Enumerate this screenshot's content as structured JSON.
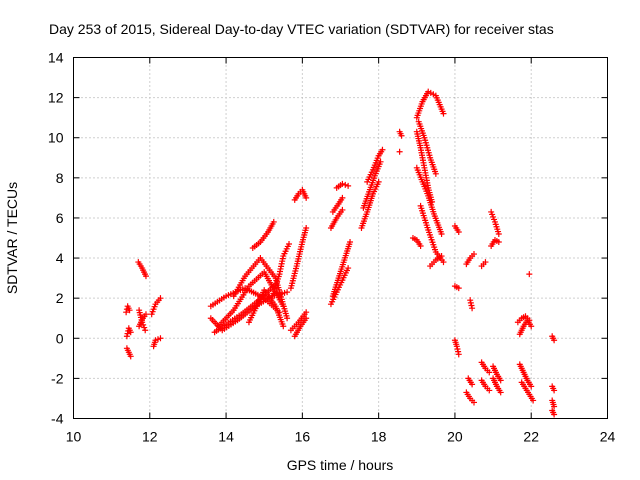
{
  "chart_data": {
    "type": "scatter",
    "title": "Day 253 of 2015, Sidereal Day-to-day VTEC variation (SDTVAR) for receiver stas",
    "xlabel": "GPS time / hours",
    "ylabel": "SDTVAR / TECUs",
    "xlim": [
      10,
      24
    ],
    "ylim": [
      -4,
      14
    ],
    "xticks": [
      10,
      12,
      14,
      16,
      18,
      20,
      22,
      24
    ],
    "yticks": [
      -4,
      -2,
      0,
      2,
      4,
      6,
      8,
      10,
      12,
      14
    ],
    "grid": true,
    "marker": "+",
    "marker_color": "#ff0000",
    "segments": [
      {
        "x": [
          11.38,
          11.42,
          11.47
        ],
        "y": [
          1.3,
          1.6,
          1.4
        ]
      },
      {
        "x": [
          11.4,
          11.45,
          11.5
        ],
        "y": [
          0.1,
          0.5,
          0.3
        ]
      },
      {
        "x": [
          11.4,
          11.45,
          11.5
        ],
        "y": [
          -0.5,
          -0.7,
          -0.9
        ]
      },
      {
        "x": [
          11.7,
          11.8,
          11.9
        ],
        "y": [
          3.8,
          3.5,
          3.1
        ]
      },
      {
        "x": [
          11.72,
          11.8,
          11.88
        ],
        "y": [
          1.4,
          0.8,
          0.4
        ]
      },
      {
        "x": [
          11.72,
          11.82,
          11.9
        ],
        "y": [
          0.6,
          1.0,
          1.2
        ]
      },
      {
        "x": [
          12.05,
          12.15,
          12.28
        ],
        "y": [
          1.2,
          1.7,
          2.0
        ]
      },
      {
        "x": [
          12.1,
          12.15,
          12.28
        ],
        "y": [
          -0.4,
          -0.1,
          0.0
        ]
      },
      {
        "x": [
          13.6,
          13.9,
          14.3,
          14.7,
          15.2,
          15.6
        ],
        "y": [
          1.0,
          0.4,
          0.9,
          1.5,
          2.1,
          2.3
        ]
      },
      {
        "x": [
          13.7,
          14.0,
          14.4,
          14.8,
          15.3
        ],
        "y": [
          0.3,
          0.7,
          1.2,
          1.8,
          2.7
        ]
      },
      {
        "x": [
          13.6,
          14.0,
          14.5,
          15.0,
          15.4
        ],
        "y": [
          1.6,
          2.1,
          2.5,
          2.0,
          1.3
        ]
      },
      {
        "x": [
          13.8,
          14.2,
          14.6,
          15.0,
          15.5
        ],
        "y": [
          0.6,
          1.4,
          2.6,
          3.3,
          1.6
        ]
      },
      {
        "x": [
          14.2,
          14.5,
          14.9,
          15.3,
          15.6
        ],
        "y": [
          2.1,
          3.1,
          4.0,
          3.0,
          1.0
        ]
      },
      {
        "x": [
          14.6,
          14.8,
          15.0,
          15.3,
          15.5
        ],
        "y": [
          0.8,
          1.6,
          2.4,
          1.6,
          0.6
        ]
      },
      {
        "x": [
          14.7,
          14.9,
          15.1,
          15.25
        ],
        "y": [
          4.5,
          4.8,
          5.3,
          5.8
        ]
      },
      {
        "x": [
          15.2,
          15.4,
          15.5,
          15.65
        ],
        "y": [
          2.0,
          3.2,
          4.1,
          4.7
        ]
      },
      {
        "x": [
          15.7,
          15.85,
          16.0,
          16.1
        ],
        "y": [
          2.5,
          3.6,
          4.8,
          5.5
        ]
      },
      {
        "x": [
          15.8,
          15.9,
          16.0,
          16.1
        ],
        "y": [
          6.9,
          7.2,
          7.4,
          7.0
        ]
      },
      {
        "x": [
          15.7,
          15.9,
          16.1
        ],
        "y": [
          0.4,
          0.8,
          1.3
        ]
      },
      {
        "x": [
          15.8,
          15.95,
          16.1
        ],
        "y": [
          0.1,
          0.6,
          1.0
        ]
      },
      {
        "x": [
          16.75,
          16.9,
          17.05,
          17.2
        ],
        "y": [
          1.7,
          2.3,
          2.9,
          3.5
        ]
      },
      {
        "x": [
          16.8,
          16.95,
          17.1,
          17.25
        ],
        "y": [
          2.1,
          3.0,
          3.9,
          4.8
        ]
      },
      {
        "x": [
          16.75,
          16.9,
          17.05
        ],
        "y": [
          5.5,
          6.0,
          6.4
        ]
      },
      {
        "x": [
          16.8,
          16.95,
          17.05
        ],
        "y": [
          6.3,
          6.7,
          7.0
        ]
      },
      {
        "x": [
          16.9,
          17.05,
          17.2
        ],
        "y": [
          7.5,
          7.7,
          7.6
        ]
      },
      {
        "x": [
          17.55,
          17.7,
          17.85,
          18.0
        ],
        "y": [
          5.5,
          6.3,
          7.2,
          7.8
        ]
      },
      {
        "x": [
          17.6,
          17.75,
          17.9,
          18.05
        ],
        "y": [
          6.5,
          7.3,
          8.1,
          8.8
        ]
      },
      {
        "x": [
          17.7,
          17.85,
          18.0,
          18.1
        ],
        "y": [
          7.8,
          8.4,
          9.1,
          9.4
        ]
      },
      {
        "x": [
          18.55,
          18.6
        ],
        "y": [
          10.3,
          10.1
        ]
      },
      {
        "x": [
          18.55
        ],
        "y": [
          9.3
        ]
      },
      {
        "x": [
          19.0,
          19.15,
          19.3,
          19.5,
          19.7
        ],
        "y": [
          11.0,
          11.8,
          12.3,
          12.1,
          11.2
        ]
      },
      {
        "x": [
          19.0,
          19.1,
          19.2,
          19.3,
          19.4
        ],
        "y": [
          10.3,
          9.5,
          8.5,
          7.5,
          6.8
        ]
      },
      {
        "x": [
          19.05,
          19.2,
          19.35,
          19.5
        ],
        "y": [
          10.8,
          10.0,
          9.0,
          8.2
        ]
      },
      {
        "x": [
          19.0,
          19.15,
          19.3,
          19.45,
          19.65
        ],
        "y": [
          8.5,
          7.8,
          7.1,
          6.2,
          5.2
        ]
      },
      {
        "x": [
          19.1,
          19.3,
          19.5,
          19.7
        ],
        "y": [
          6.6,
          5.4,
          4.3,
          3.8
        ]
      },
      {
        "x": [
          18.9,
          19.0,
          19.1
        ],
        "y": [
          5.0,
          4.9,
          4.6
        ]
      },
      {
        "x": [
          19.35,
          19.5,
          19.65
        ],
        "y": [
          3.6,
          3.9,
          4.1
        ]
      },
      {
        "x": [
          20.0,
          20.1
        ],
        "y": [
          5.6,
          5.3
        ]
      },
      {
        "x": [
          20.0,
          20.1
        ],
        "y": [
          2.6,
          2.5
        ]
      },
      {
        "x": [
          20.0,
          20.05,
          20.1
        ],
        "y": [
          -0.1,
          -0.4,
          -0.8
        ]
      },
      {
        "x": [
          20.3,
          20.4,
          20.5
        ],
        "y": [
          3.7,
          4.0,
          4.2
        ]
      },
      {
        "x": [
          20.4,
          20.45
        ],
        "y": [
          1.9,
          1.5
        ]
      },
      {
        "x": [
          20.35,
          20.45
        ],
        "y": [
          -2.0,
          -2.3
        ]
      },
      {
        "x": [
          20.3,
          20.4,
          20.5
        ],
        "y": [
          -2.7,
          -3.0,
          -3.2
        ]
      },
      {
        "x": [
          20.7,
          20.8
        ],
        "y": [
          3.6,
          3.8
        ]
      },
      {
        "x": [
          20.7,
          20.8,
          20.9
        ],
        "y": [
          -1.2,
          -1.5,
          -1.7
        ]
      },
      {
        "x": [
          20.7,
          20.8,
          20.9
        ],
        "y": [
          -2.1,
          -2.4,
          -2.6
        ]
      },
      {
        "x": [
          20.95,
          21.05,
          21.15
        ],
        "y": [
          6.3,
          5.8,
          5.2
        ]
      },
      {
        "x": [
          20.95,
          21.05,
          21.15
        ],
        "y": [
          4.6,
          4.9,
          4.8
        ]
      },
      {
        "x": [
          21.0,
          21.1,
          21.2
        ],
        "y": [
          -1.4,
          -1.8,
          -2.1
        ]
      },
      {
        "x": [
          21.0,
          21.1,
          21.2
        ],
        "y": [
          -2.0,
          -2.4,
          -2.7
        ]
      },
      {
        "x": [
          21.65,
          21.75,
          21.85,
          21.95
        ],
        "y": [
          0.8,
          1.0,
          1.1,
          0.9
        ]
      },
      {
        "x": [
          21.7,
          21.8,
          21.9,
          22.0
        ],
        "y": [
          0.2,
          0.6,
          0.9,
          0.6
        ]
      },
      {
        "x": [
          21.7,
          21.8,
          21.9,
          22.0
        ],
        "y": [
          -1.3,
          -1.7,
          -2.1,
          -2.4
        ]
      },
      {
        "x": [
          21.75,
          21.85,
          21.95,
          22.05
        ],
        "y": [
          -2.2,
          -2.5,
          -2.8,
          -3.1
        ]
      },
      {
        "x": [
          21.95
        ],
        "y": [
          3.2
        ]
      },
      {
        "x": [
          22.55,
          22.6
        ],
        "y": [
          0.1,
          -0.1
        ]
      },
      {
        "x": [
          22.55,
          22.6
        ],
        "y": [
          -2.4,
          -2.6
        ]
      },
      {
        "x": [
          22.55,
          22.6
        ],
        "y": [
          -3.1,
          -3.4
        ]
      },
      {
        "x": [
          22.55,
          22.6
        ],
        "y": [
          -3.6,
          -3.8
        ]
      }
    ]
  }
}
